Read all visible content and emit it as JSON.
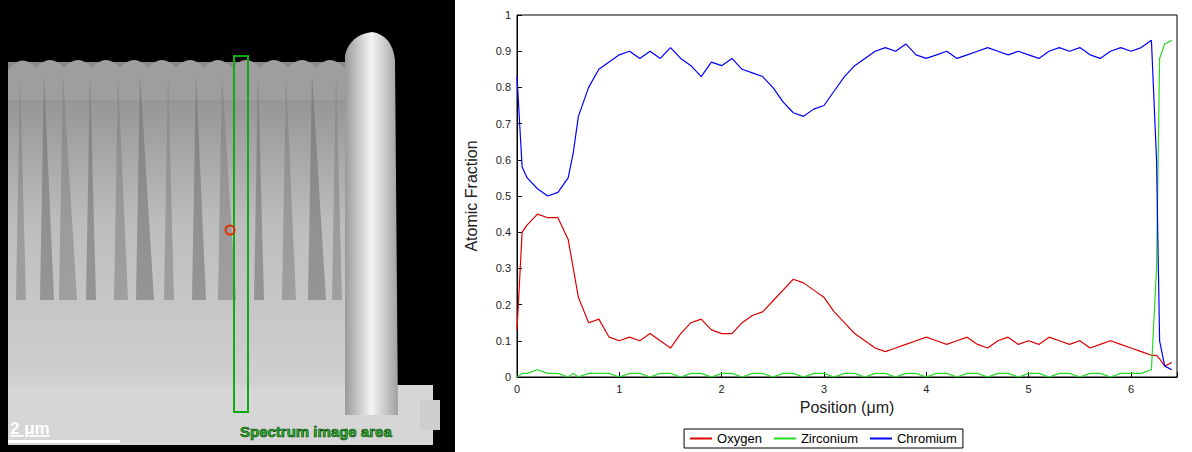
{
  "chart_data": {
    "type": "line",
    "x_label": "Position (μm)",
    "y_label": "Atomic Fraction",
    "xlim": [
      0,
      6.45
    ],
    "xticks": [
      0,
      1,
      2,
      3,
      4,
      5,
      6
    ],
    "ylim": [
      0,
      1
    ],
    "yticks": [
      0,
      0.1,
      0.2,
      0.3,
      0.4,
      0.5,
      0.6,
      0.7,
      0.8,
      0.9,
      1
    ],
    "grid": false,
    "legend": "bottom",
    "x": [
      0,
      0.05,
      0.1,
      0.2,
      0.3,
      0.4,
      0.5,
      0.55,
      0.6,
      0.7,
      0.8,
      0.9,
      1.0,
      1.1,
      1.2,
      1.3,
      1.4,
      1.5,
      1.6,
      1.7,
      1.8,
      1.9,
      2.0,
      2.1,
      2.2,
      2.3,
      2.4,
      2.5,
      2.6,
      2.7,
      2.8,
      2.9,
      3.0,
      3.1,
      3.2,
      3.3,
      3.4,
      3.5,
      3.6,
      3.7,
      3.8,
      3.9,
      4.0,
      4.1,
      4.2,
      4.3,
      4.4,
      4.5,
      4.6,
      4.7,
      4.8,
      4.9,
      5.0,
      5.1,
      5.2,
      5.3,
      5.4,
      5.5,
      5.6,
      5.7,
      5.8,
      5.9,
      6.0,
      6.1,
      6.2,
      6.25,
      6.28,
      6.33,
      6.4
    ],
    "series": [
      {
        "name": "Oxygen",
        "color": "#e00000",
        "values": [
          0.13,
          0.4,
          0.42,
          0.45,
          0.44,
          0.44,
          0.38,
          0.3,
          0.22,
          0.15,
          0.16,
          0.11,
          0.1,
          0.11,
          0.1,
          0.12,
          0.1,
          0.08,
          0.12,
          0.15,
          0.16,
          0.13,
          0.12,
          0.12,
          0.15,
          0.17,
          0.18,
          0.21,
          0.24,
          0.27,
          0.26,
          0.24,
          0.22,
          0.18,
          0.15,
          0.12,
          0.1,
          0.08,
          0.07,
          0.08,
          0.09,
          0.1,
          0.11,
          0.1,
          0.09,
          0.1,
          0.11,
          0.09,
          0.08,
          0.1,
          0.11,
          0.09,
          0.1,
          0.09,
          0.11,
          0.1,
          0.09,
          0.1,
          0.08,
          0.09,
          0.1,
          0.09,
          0.08,
          0.07,
          0.06,
          0.06,
          0.05,
          0.03,
          0.04
        ]
      },
      {
        "name": "Zirconium",
        "color": "#22dd22",
        "values": [
          0,
          0.01,
          0.01,
          0.02,
          0.01,
          0.01,
          0,
          0.01,
          0,
          0.01,
          0.01,
          0.01,
          0,
          0.01,
          0.01,
          0,
          0.01,
          0.01,
          0,
          0.01,
          0.01,
          0,
          0.01,
          0.01,
          0,
          0.01,
          0.01,
          0,
          0.01,
          0.01,
          0,
          0.01,
          0.01,
          0,
          0.01,
          0.01,
          0,
          0.01,
          0.01,
          0,
          0.01,
          0.01,
          0,
          0.01,
          0.01,
          0,
          0.01,
          0.01,
          0,
          0.01,
          0.01,
          0,
          0.01,
          0.01,
          0,
          0.01,
          0.01,
          0,
          0.01,
          0.01,
          0,
          0.01,
          0.01,
          0.01,
          0.02,
          0.3,
          0.88,
          0.92,
          0.93
        ]
      },
      {
        "name": "Chromium",
        "color": "#0000ff",
        "values": [
          0.83,
          0.58,
          0.55,
          0.52,
          0.5,
          0.51,
          0.55,
          0.62,
          0.72,
          0.8,
          0.85,
          0.87,
          0.89,
          0.9,
          0.88,
          0.9,
          0.88,
          0.91,
          0.88,
          0.86,
          0.83,
          0.87,
          0.86,
          0.88,
          0.85,
          0.84,
          0.83,
          0.8,
          0.76,
          0.73,
          0.72,
          0.74,
          0.75,
          0.79,
          0.83,
          0.86,
          0.88,
          0.9,
          0.91,
          0.9,
          0.92,
          0.89,
          0.88,
          0.89,
          0.9,
          0.88,
          0.89,
          0.9,
          0.91,
          0.9,
          0.89,
          0.9,
          0.89,
          0.88,
          0.9,
          0.91,
          0.9,
          0.91,
          0.89,
          0.88,
          0.9,
          0.91,
          0.9,
          0.91,
          0.93,
          0.6,
          0.1,
          0.03,
          0.02
        ]
      }
    ]
  },
  "image": {
    "scale_bar_label": "2 μm",
    "box_label": "Spectrum image area"
  }
}
